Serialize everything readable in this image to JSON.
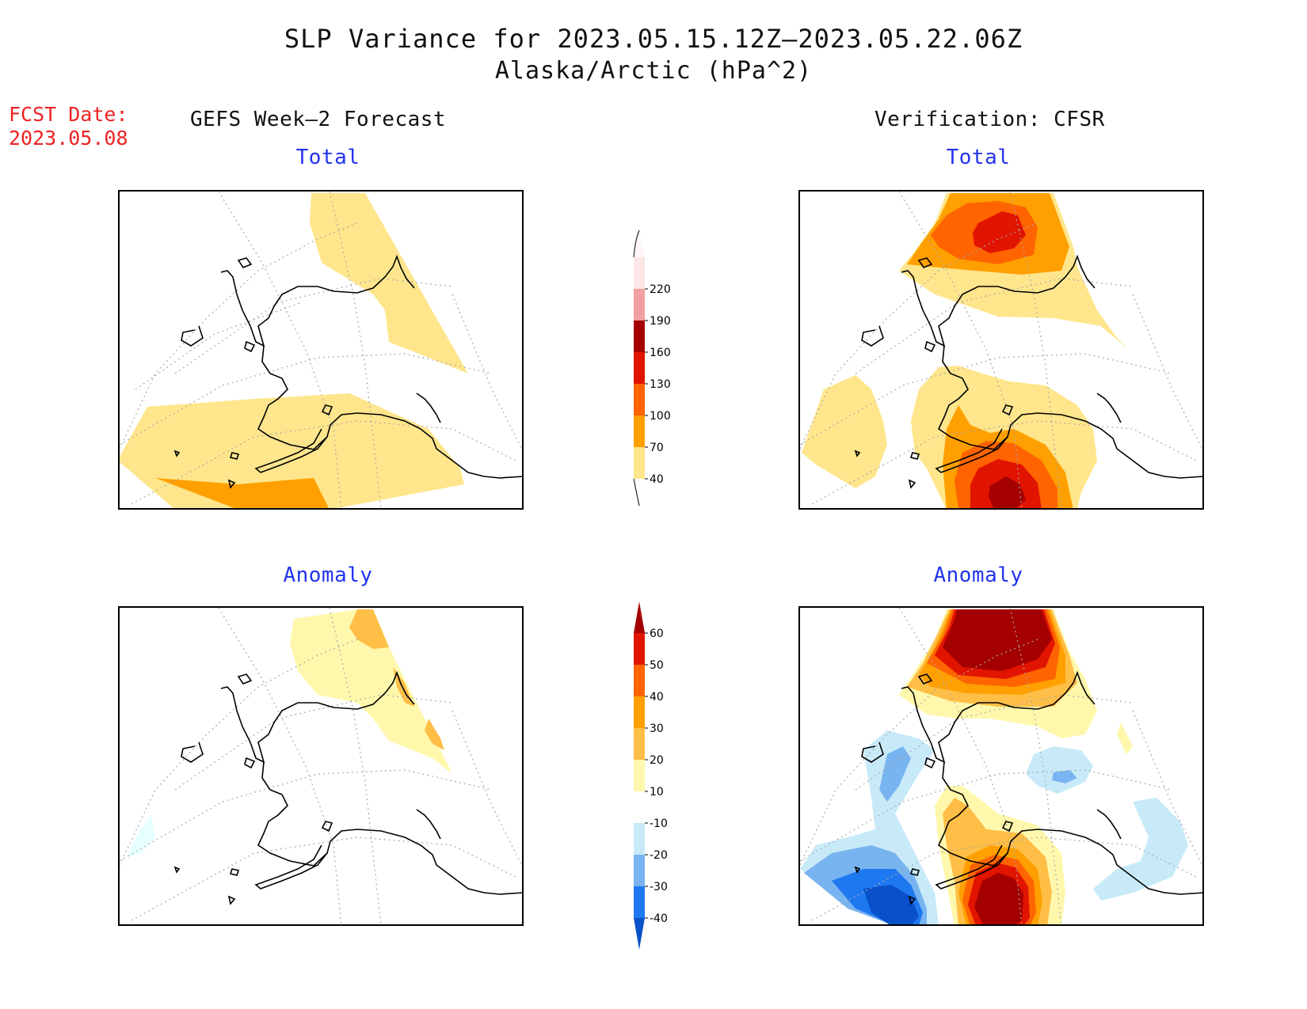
{
  "title": {
    "line1": "SLP Variance for 2023.05.15.12Z–2023.05.22.06Z",
    "line2": "Alaska/Arctic (hPa^2)"
  },
  "fcst_date": {
    "label": "FCST Date:",
    "value": "2023.05.08"
  },
  "columns": {
    "left": "GEFS Week–2 Forecast",
    "right": "Verification: CFSR"
  },
  "panels": {
    "top_left": "Total",
    "top_right": "Total",
    "bottom_left": "Anomaly",
    "bottom_right": "Anomaly"
  },
  "colorbars": {
    "total": {
      "ticks": [
        "40",
        "70",
        "100",
        "130",
        "160",
        "190",
        "220"
      ],
      "colors": [
        "#ffe68c",
        "#ffa000",
        "#ff6400",
        "#e11400",
        "#a50000",
        "#f0a0a0",
        "#fde6e6"
      ]
    },
    "anomaly": {
      "ticks": [
        "-40",
        "-30",
        "-20",
        "-10",
        "10",
        "20",
        "30",
        "40",
        "50",
        "60"
      ],
      "colors": [
        "#0a50c8",
        "#1e78f0",
        "#78b4f0",
        "#c8eaf8",
        "#e6ffff",
        "#ffffff",
        "#fff8ac",
        "#ffbe46",
        "#ffa000",
        "#ff6400",
        "#e11400",
        "#a50000"
      ]
    }
  }
}
